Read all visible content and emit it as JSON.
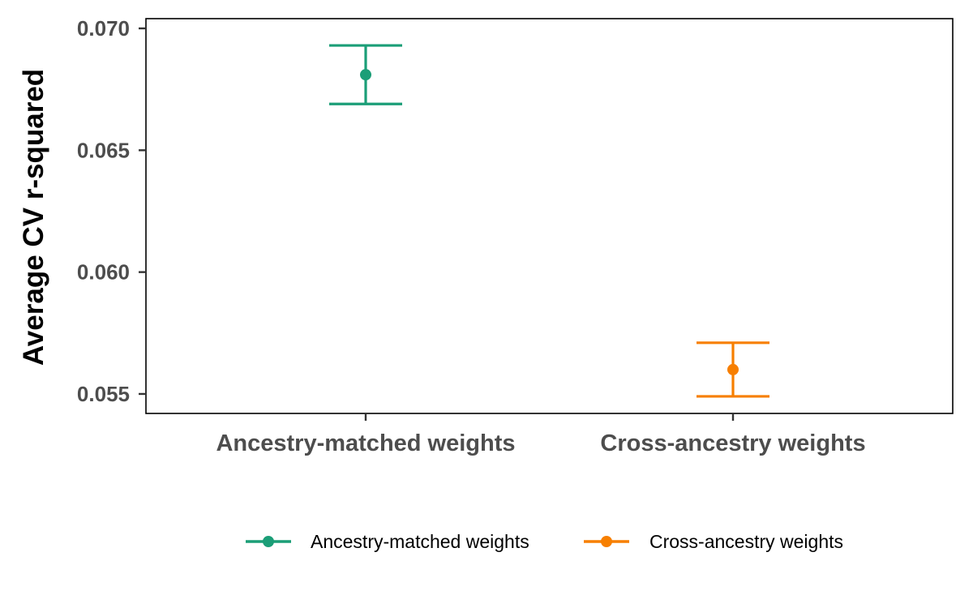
{
  "chart_data": {
    "type": "scatter",
    "ylabel": "Average CV r-squared",
    "xlabel": "",
    "categories": [
      "Ancestry-matched weights",
      "Cross-ancestry weights"
    ],
    "ylim": [
      0.0542,
      0.0704
    ],
    "yticks": [
      "0.055",
      "0.060",
      "0.065",
      "0.070"
    ],
    "grid": false,
    "legend_position": "bottom",
    "series": [
      {
        "name": "Ancestry-matched weights",
        "category": "Ancestry-matched weights",
        "value": 0.0681,
        "lower": 0.0669,
        "upper": 0.0693,
        "color": "#1b9e77"
      },
      {
        "name": "Cross-ancestry weights",
        "category": "Cross-ancestry weights",
        "value": 0.056,
        "lower": 0.0549,
        "upper": 0.0571,
        "color": "#f77f00"
      }
    ]
  }
}
